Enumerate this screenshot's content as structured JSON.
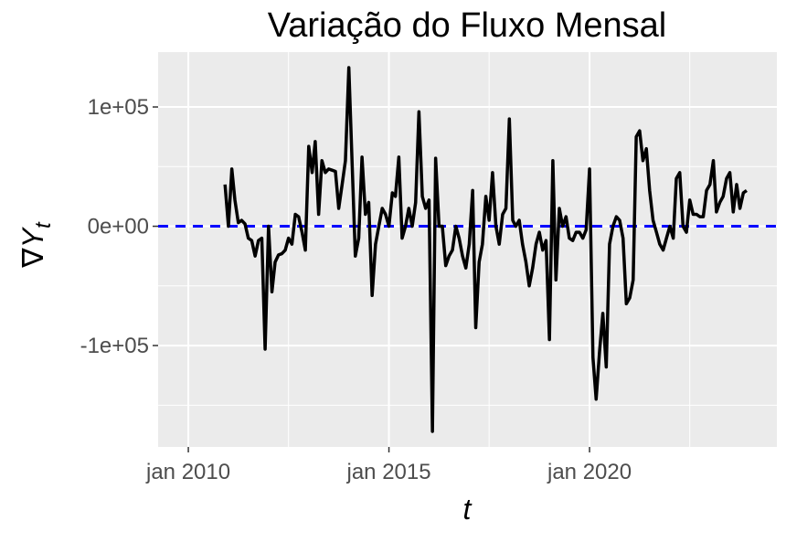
{
  "chart_data": {
    "type": "line",
    "title": "Variação do Fluxo Mensal",
    "xlabel": "t",
    "ylabel": "∇Y",
    "ylabel_subscript": "t",
    "x_ticks": [
      "jan 2010",
      "jan 2015",
      "jan 2020"
    ],
    "y_ticks": [
      "-1e+05",
      "0e+00",
      "1e+05"
    ],
    "x_range": [
      "2009-04-01",
      "2024-09-01"
    ],
    "y_range": [
      -185000,
      146000
    ],
    "grid": true,
    "background": "#EBEBEB",
    "grid_color": "#FFFFFF",
    "line_color": "#000000",
    "reference_line": {
      "y": 0,
      "color": "#0000FF",
      "style": "dashed"
    },
    "series": [
      {
        "x": [
          "2010-12",
          "2011-01",
          "2011-02",
          "2011-03",
          "2011-04",
          "2011-05",
          "2011-06",
          "2011-07",
          "2011-08",
          "2011-09",
          "2011-10",
          "2011-11",
          "2011-12",
          "2012-01",
          "2012-02",
          "2012-03",
          "2012-04",
          "2012-05",
          "2012-06",
          "2012-07",
          "2012-08",
          "2012-09",
          "2012-10",
          "2012-11",
          "2012-12",
          "2013-01",
          "2013-02",
          "2013-03",
          "2013-04",
          "2013-05",
          "2013-06",
          "2013-07",
          "2013-08",
          "2013-09",
          "2013-10",
          "2013-11",
          "2013-12",
          "2014-01",
          "2014-02",
          "2014-03",
          "2014-04",
          "2014-05",
          "2014-06",
          "2014-07",
          "2014-08",
          "2014-09",
          "2014-10",
          "2014-11",
          "2014-12",
          "2015-01",
          "2015-02",
          "2015-03",
          "2015-04",
          "2015-05",
          "2015-06",
          "2015-07",
          "2015-08",
          "2015-09",
          "2015-10",
          "2015-11",
          "2015-12",
          "2016-01",
          "2016-02",
          "2016-03",
          "2016-04",
          "2016-05",
          "2016-06",
          "2016-07",
          "2016-08",
          "2016-09",
          "2016-10",
          "2016-11",
          "2016-12",
          "2017-01",
          "2017-02",
          "2017-03",
          "2017-04",
          "2017-05",
          "2017-06",
          "2017-07",
          "2017-08",
          "2017-09",
          "2017-10",
          "2017-11",
          "2017-12",
          "2018-01",
          "2018-02",
          "2018-03",
          "2018-04",
          "2018-05",
          "2018-06",
          "2018-07",
          "2018-08",
          "2018-09",
          "2018-10",
          "2018-11",
          "2018-12",
          "2019-01",
          "2019-02",
          "2019-03",
          "2019-04",
          "2019-05",
          "2019-06",
          "2019-07",
          "2019-08",
          "2019-09",
          "2019-10",
          "2019-11",
          "2019-12",
          "2020-01",
          "2020-02",
          "2020-03",
          "2020-04",
          "2020-05",
          "2020-06",
          "2020-07",
          "2020-08",
          "2020-09",
          "2020-10",
          "2020-11",
          "2020-12",
          "2021-01",
          "2021-02",
          "2021-03",
          "2021-04",
          "2021-05",
          "2021-06",
          "2021-07",
          "2021-08",
          "2021-09",
          "2021-10",
          "2021-11",
          "2021-12",
          "2022-01",
          "2022-02",
          "2022-03",
          "2022-04",
          "2022-05",
          "2022-06",
          "2022-07",
          "2022-08",
          "2022-09",
          "2022-10",
          "2022-11",
          "2022-12",
          "2023-01",
          "2023-02",
          "2023-03",
          "2023-04",
          "2023-05",
          "2023-06",
          "2023-07",
          "2023-08",
          "2023-09",
          "2023-10",
          "2023-11",
          "2023-12"
        ],
        "y": [
          35000,
          0,
          48000,
          22000,
          3000,
          5000,
          2000,
          -10000,
          -12000,
          -25000,
          -12000,
          -10000,
          -103000,
          0,
          -55000,
          -30000,
          -24000,
          -23000,
          -20000,
          -10000,
          -15000,
          10000,
          8000,
          -5000,
          -20000,
          67000,
          45000,
          71000,
          10000,
          55000,
          45000,
          48000,
          47000,
          46000,
          15000,
          35000,
          55000,
          133000,
          50000,
          -25000,
          -10000,
          58000,
          10000,
          20000,
          -58000,
          -15000,
          0,
          15000,
          10000,
          0,
          28000,
          25000,
          58000,
          -10000,
          0,
          15000,
          0,
          20000,
          96000,
          25000,
          15000,
          22000,
          -172000,
          57000,
          0,
          0,
          -33000,
          -25000,
          -20000,
          0,
          -10000,
          -25000,
          -35000,
          -15000,
          30000,
          -85000,
          -30000,
          -15000,
          25000,
          5000,
          45000,
          0,
          -15000,
          10000,
          15000,
          90000,
          5000,
          0,
          5000,
          -15000,
          -30000,
          -50000,
          -35000,
          -15000,
          -5000,
          -20000,
          -12000,
          -95000,
          55000,
          -45000,
          15000,
          0,
          8000,
          -10000,
          -12000,
          -5000,
          -5000,
          -10000,
          -3000,
          48000,
          -110000,
          -145000,
          -105000,
          -73000,
          -118000,
          -15000,
          0,
          8000,
          5000,
          -10000,
          -65000,
          -60000,
          -45000,
          75000,
          80000,
          55000,
          65000,
          30000,
          5000,
          -5000,
          -15000,
          -20000,
          -10000,
          0,
          -10000,
          40000,
          45000,
          0,
          -5000,
          22000,
          10000,
          10000,
          8000,
          8000,
          30000,
          35000,
          55000,
          12000,
          20000,
          25000,
          40000,
          45000,
          12000,
          35000,
          15000,
          28000,
          30000
        ]
      }
    ]
  }
}
